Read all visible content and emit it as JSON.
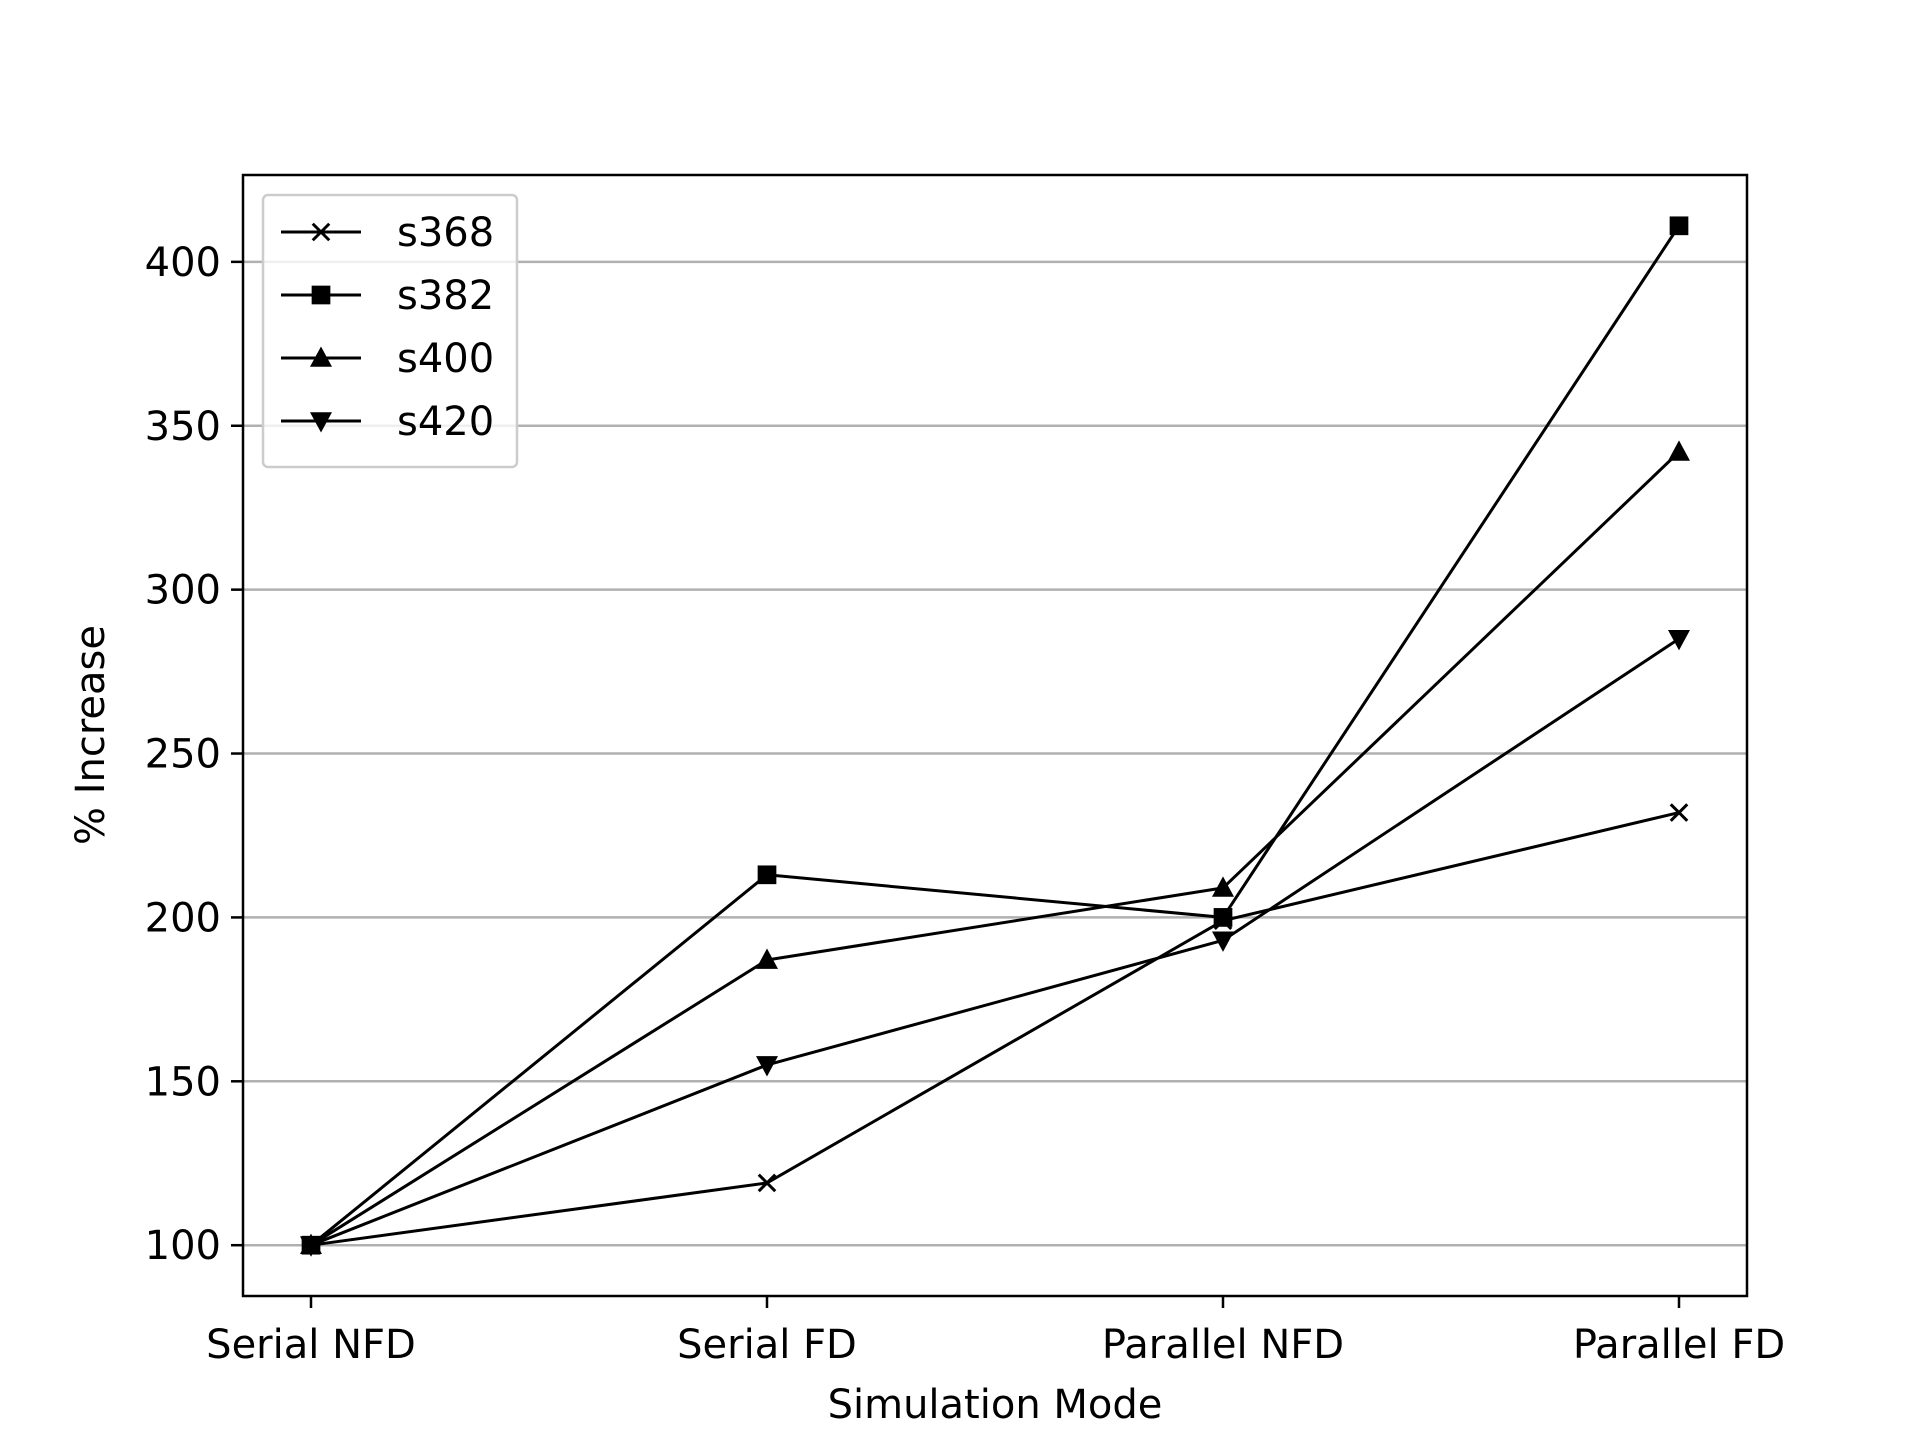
{
  "chart_data": {
    "type": "line",
    "title": "",
    "xlabel": "Simulation Mode",
    "ylabel": "% Increase",
    "categories": [
      "Serial NFD",
      "Serial FD",
      "Parallel NFD",
      "Parallel FD"
    ],
    "ylim": [
      84.5,
      426.5
    ],
    "yticks": [
      100,
      150,
      200,
      250,
      300,
      350,
      400
    ],
    "grid": "horizontal",
    "legend_position": "top-left",
    "line_color": "#000000",
    "grid_color": "#b0b0b0",
    "series": [
      {
        "name": "s368",
        "marker": "x",
        "values": [
          100,
          119,
          199,
          232
        ]
      },
      {
        "name": "s382",
        "marker": "square",
        "values": [
          100,
          213,
          200,
          411
        ]
      },
      {
        "name": "s400",
        "marker": "triangle-up",
        "values": [
          100,
          187,
          209,
          342
        ]
      },
      {
        "name": "s420",
        "marker": "triangle-down",
        "values": [
          100,
          155,
          193,
          285
        ]
      }
    ]
  }
}
